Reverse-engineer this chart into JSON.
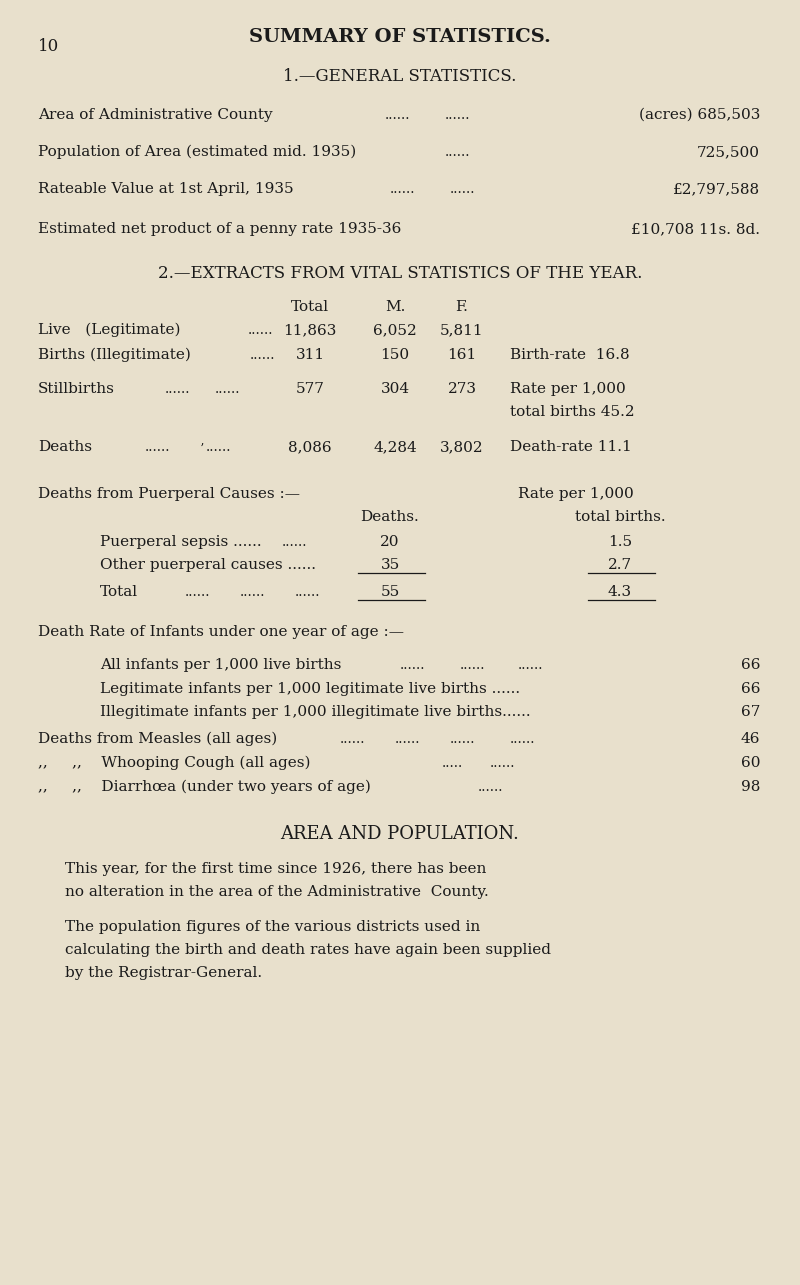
{
  "bg_color": "#e8e0cc",
  "text_color": "#1a1a1a",
  "page_number": "10",
  "main_title": "SUMMARY OF STATISTICS.",
  "section1_title": "1.—GENERAL STATISTICS.",
  "section2_title": "2.—EXTRACTS FROM VITAL STATISTICS OF THE YEAR.",
  "area_title": "AREA AND POPULATION.",
  "area_para1_line1": "This year, for the first time since 1926, there has been",
  "area_para1_line2": "no alteration in the area of the Administrative  County.",
  "area_para2_line1": "The population figures of the various districts used in",
  "area_para2_line2": "calculating the birth and death rates have again been supplied",
  "area_para2_line3": "by the Registrar-General."
}
